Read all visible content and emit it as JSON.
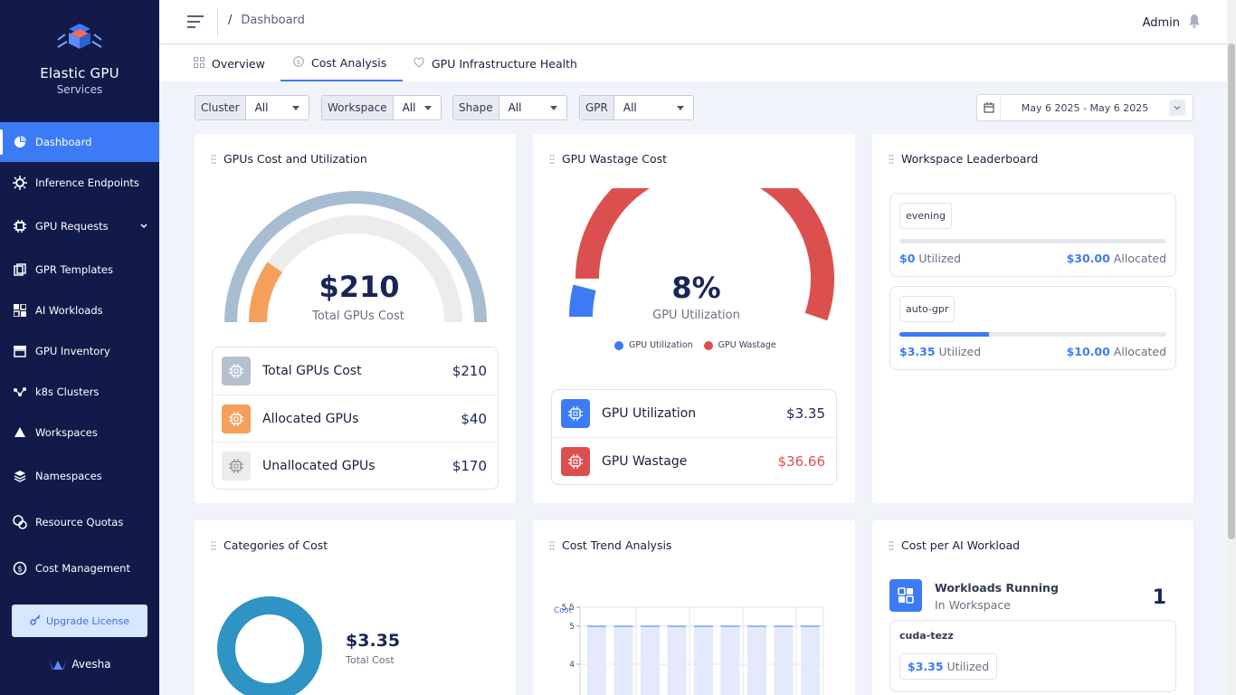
{
  "app": {
    "title": "Elastic GPU",
    "subtitle": "Services",
    "vendor": "Avesha"
  },
  "sidebar": {
    "items": [
      {
        "label": "Dashboard",
        "icon": "pie-chart-icon",
        "active": true
      },
      {
        "label": "Inference Endpoints",
        "icon": "gear-network-icon"
      },
      {
        "label": "GPU Requests",
        "icon": "chip-icon",
        "expandable": true
      },
      {
        "label": "GPR Templates",
        "icon": "templates-icon"
      },
      {
        "label": "AI Workloads",
        "icon": "grid-icon"
      },
      {
        "label": "GPU Inventory",
        "icon": "inventory-icon"
      },
      {
        "label": "k8s Clusters",
        "icon": "cluster-icon"
      },
      {
        "label": "Workspaces",
        "icon": "workspace-icon"
      },
      {
        "label": "Namespaces",
        "icon": "layers-icon"
      },
      {
        "label": "Resource Quotas",
        "icon": "coins-icon"
      },
      {
        "label": "Cost Management",
        "icon": "money-icon"
      }
    ],
    "upgrade_label": "Upgrade License"
  },
  "header": {
    "breadcrumb_sep": "/",
    "breadcrumb": "Dashboard",
    "user": "Admin"
  },
  "tabs": [
    {
      "label": "Overview",
      "active": false
    },
    {
      "label": "Cost Analysis",
      "active": true
    },
    {
      "label": "GPU Infrastructure Health",
      "active": false
    }
  ],
  "filters": [
    {
      "label": "Cluster",
      "value": "All"
    },
    {
      "label": "Workspace",
      "value": "All"
    },
    {
      "label": "Shape",
      "value": "All"
    },
    {
      "label": "GPR",
      "value": "All"
    }
  ],
  "date_range": "May 6 2025 - May 6 2025",
  "gpu_cost": {
    "title": "GPUs Cost and Utilization",
    "center_value": "$210",
    "center_label": "Total GPUs Cost",
    "allocated_fraction": 0.19,
    "rows": [
      {
        "label": "Total GPUs Cost",
        "value": "$210"
      },
      {
        "label": "Allocated GPUs",
        "value": "$40"
      },
      {
        "label": "Unallocated GPUs",
        "value": "$170"
      }
    ]
  },
  "wastage": {
    "title": "GPU Wastage Cost",
    "center_value": "8%",
    "center_label": "GPU Utilization",
    "utilization_fraction": 0.08,
    "legend": [
      "GPU Utilization",
      "GPU Wastage"
    ],
    "rows": [
      {
        "label": "GPU Utilization",
        "value": "$3.35"
      },
      {
        "label": "GPU Wastage",
        "value": "$36.66"
      }
    ]
  },
  "leaderboard": {
    "title": "Workspace Leaderboard",
    "items": [
      {
        "name": "evening",
        "utilized": "$0",
        "allocated": "$30.00",
        "utilized_fraction": 0
      },
      {
        "name": "auto-gpr",
        "utilized": "$3.35",
        "allocated": "$10.00",
        "utilized_fraction": 0.335
      }
    ],
    "utilized_word": "Utilized",
    "allocated_word": "Allocated"
  },
  "categories": {
    "title": "Categories of Cost",
    "value": "$3.35",
    "label": "Total Cost"
  },
  "trend": {
    "title": "Cost Trend Analysis",
    "chart_data": {
      "type": "bar",
      "ylabel": "Cost",
      "yticks": [
        "5.5",
        "5",
        "4"
      ],
      "ylim": [
        3.5,
        5.5
      ],
      "values": [
        5,
        5,
        5,
        5,
        5,
        5,
        5,
        5,
        5
      ]
    }
  },
  "workload": {
    "title": "Cost per AI Workload",
    "running_label": "Workloads Running",
    "running_sub": "In Workspace",
    "running_count": "1",
    "item_name": "cuda-tezz",
    "item_value": "$3.35",
    "item_word": "Utilized"
  },
  "colors": {
    "sidebar": "#121a4a",
    "accent": "#3d7bf6",
    "orange": "#f4a05a",
    "red": "#dc4f4f",
    "steel": "#a8bcd2"
  }
}
